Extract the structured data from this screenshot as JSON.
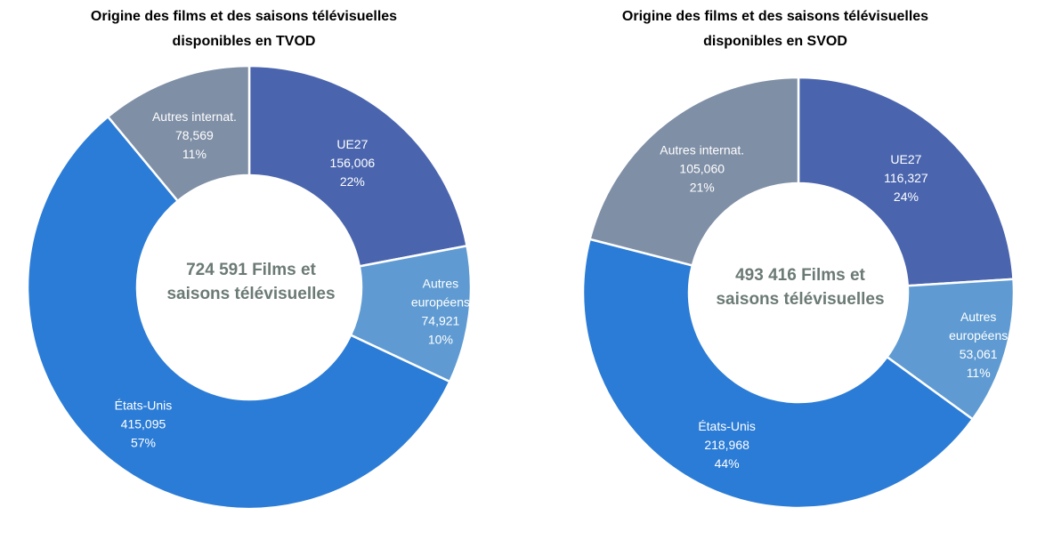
{
  "chart_data": [
    {
      "type": "pie",
      "title_lines": [
        "Origine des films et des saisons télévisuelles",
        "disponibles en TVOD"
      ],
      "center_lines": [
        "724 591 Films et",
        "saisons télévisuelles"
      ],
      "slices": [
        {
          "label_lines": [
            "UE27"
          ],
          "value": "156,006",
          "pct": "22%",
          "share": 22,
          "color": "#4a65ae"
        },
        {
          "label_lines": [
            "Autres",
            "européens"
          ],
          "value": "74,921",
          "pct": "10%",
          "share": 10,
          "color": "#5f9bd2"
        },
        {
          "label_lines": [
            "États-Unis"
          ],
          "value": "415,095",
          "pct": "57%",
          "share": 57,
          "color": "#2b7cd6"
        },
        {
          "label_lines": [
            "Autres internat."
          ],
          "value": "78,569",
          "pct": "11%",
          "share": 11,
          "color": "#7f8fa6"
        }
      ]
    },
    {
      "type": "pie",
      "title_lines": [
        "Origine des films et des saisons télévisuelles",
        "disponibles en SVOD"
      ],
      "center_lines": [
        "493 416 Films et",
        "saisons télévisuelles"
      ],
      "slices": [
        {
          "label_lines": [
            "UE27"
          ],
          "value": "116,327",
          "pct": "24%",
          "share": 24,
          "color": "#4a65ae"
        },
        {
          "label_lines": [
            "Autres",
            "européens"
          ],
          "value": "53,061",
          "pct": "11%",
          "share": 11,
          "color": "#5f9bd2"
        },
        {
          "label_lines": [
            "États-Unis"
          ],
          "value": "218,968",
          "pct": "44%",
          "share": 44,
          "color": "#2b7cd6"
        },
        {
          "label_lines": [
            "Autres internat."
          ],
          "value": "105,060",
          "pct": "21%",
          "share": 21,
          "color": "#7f8fa6"
        }
      ]
    }
  ]
}
